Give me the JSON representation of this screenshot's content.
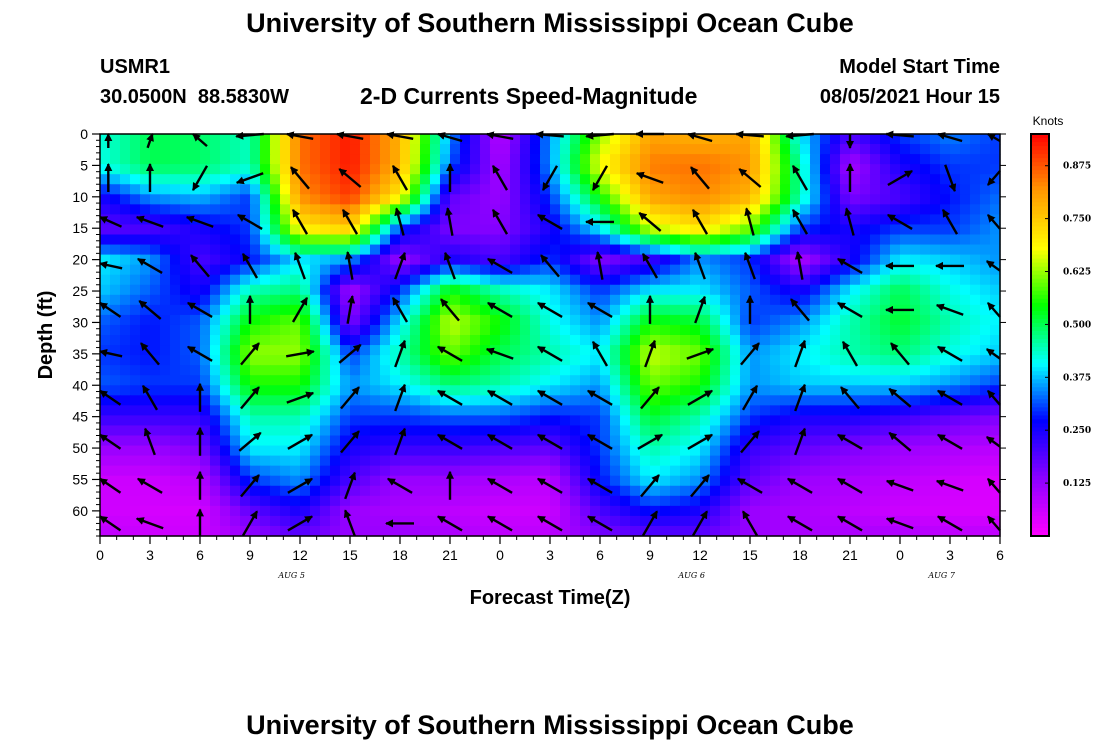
{
  "title": "University of Southern Mississippi Ocean Cube",
  "footer_title": "University of Southern Mississippi Ocean Cube",
  "station": {
    "id": "USMR1",
    "coords": "30.0500N  88.5830W"
  },
  "subtitle": "2-D Currents Speed-Magnitude",
  "model": {
    "label": "Model Start Time",
    "value": "08/05/2021 Hour 15"
  },
  "colors": {
    "colorscale": [
      "#ff00ff",
      "#8c00ff",
      "#0000ff",
      "#00ffff",
      "#00ff00",
      "#ffff00",
      "#ff9900",
      "#ff0000"
    ]
  },
  "chart_data": {
    "type": "heatmap",
    "xlabel": "Forecast Time(Z)",
    "ylabel": "Depth (ft)",
    "xlim": [
      0,
      54
    ],
    "ylim": [
      0,
      64
    ],
    "y_reversed": true,
    "x_tick_labels": [
      "0",
      "3",
      "6",
      "9",
      "12",
      "15",
      "18",
      "21",
      "0",
      "3",
      "6",
      "9",
      "12",
      "15",
      "18",
      "21",
      "0",
      "3",
      "6"
    ],
    "y_ticks": [
      0,
      5,
      10,
      15,
      20,
      25,
      30,
      35,
      40,
      45,
      50,
      55,
      60
    ],
    "day_labels": [
      {
        "label": "AUG 5",
        "x": 11.5
      },
      {
        "label": "AUG 6",
        "x": 35.5
      },
      {
        "label": "AUG 7",
        "x": 50.5
      }
    ],
    "colorbar": {
      "unit": "Knots",
      "range": [
        0,
        0.95
      ],
      "ticks": [
        "0.875",
        "0.750",
        "0.625",
        "0.500",
        "0.375",
        "0.250",
        "0.125"
      ],
      "tick_values": [
        0.875,
        0.75,
        0.625,
        0.5,
        0.375,
        0.25,
        0.125
      ]
    },
    "speed_grid_knots": {
      "x": [
        0,
        3,
        6,
        9,
        12,
        15,
        18,
        21,
        24,
        27,
        30,
        33,
        36,
        39,
        42,
        45,
        48,
        51,
        54
      ],
      "depth": [
        0,
        5,
        10,
        15,
        20,
        25,
        30,
        35,
        40,
        45,
        50,
        55,
        60,
        64
      ],
      "values": [
        [
          0.42,
          0.5,
          0.49,
          0.44,
          0.85,
          0.93,
          0.78,
          0.35,
          0.08,
          0.35,
          0.62,
          0.8,
          0.78,
          0.8,
          0.4,
          0.2,
          0.3,
          0.34,
          0.3
        ],
        [
          0.42,
          0.5,
          0.49,
          0.44,
          0.85,
          0.93,
          0.78,
          0.32,
          0.1,
          0.35,
          0.68,
          0.84,
          0.85,
          0.82,
          0.45,
          0.1,
          0.25,
          0.3,
          0.3
        ],
        [
          0.25,
          0.35,
          0.37,
          0.3,
          0.82,
          0.9,
          0.7,
          0.18,
          0.12,
          0.3,
          0.55,
          0.8,
          0.83,
          0.78,
          0.45,
          0.15,
          0.2,
          0.28,
          0.33
        ],
        [
          0.18,
          0.2,
          0.25,
          0.3,
          0.7,
          0.75,
          0.3,
          0.15,
          0.14,
          0.25,
          0.4,
          0.65,
          0.72,
          0.6,
          0.3,
          0.25,
          0.3,
          0.3,
          0.35
        ],
        [
          0.4,
          0.35,
          0.2,
          0.28,
          0.4,
          0.35,
          0.12,
          0.25,
          0.2,
          0.3,
          0.15,
          0.22,
          0.35,
          0.3,
          0.1,
          0.25,
          0.4,
          0.38,
          0.35
        ],
        [
          0.38,
          0.32,
          0.25,
          0.45,
          0.48,
          0.1,
          0.3,
          0.55,
          0.45,
          0.4,
          0.3,
          0.4,
          0.4,
          0.32,
          0.25,
          0.4,
          0.5,
          0.42,
          0.38
        ],
        [
          0.32,
          0.28,
          0.32,
          0.55,
          0.6,
          0.15,
          0.4,
          0.65,
          0.55,
          0.42,
          0.35,
          0.55,
          0.52,
          0.3,
          0.35,
          0.45,
          0.52,
          0.45,
          0.4
        ],
        [
          0.3,
          0.28,
          0.32,
          0.62,
          0.62,
          0.3,
          0.45,
          0.6,
          0.5,
          0.45,
          0.4,
          0.65,
          0.6,
          0.35,
          0.4,
          0.45,
          0.48,
          0.42,
          0.38
        ],
        [
          0.32,
          0.3,
          0.3,
          0.55,
          0.55,
          0.35,
          0.4,
          0.48,
          0.45,
          0.4,
          0.35,
          0.6,
          0.55,
          0.35,
          0.38,
          0.38,
          0.38,
          0.35,
          0.3
        ],
        [
          0.22,
          0.22,
          0.22,
          0.45,
          0.45,
          0.3,
          0.3,
          0.32,
          0.32,
          0.28,
          0.3,
          0.52,
          0.45,
          0.3,
          0.25,
          0.25,
          0.22,
          0.18,
          0.15
        ],
        [
          0.12,
          0.12,
          0.15,
          0.4,
          0.4,
          0.25,
          0.22,
          0.22,
          0.2,
          0.18,
          0.3,
          0.45,
          0.4,
          0.22,
          0.18,
          0.15,
          0.12,
          0.1,
          0.08
        ],
        [
          0.06,
          0.06,
          0.08,
          0.3,
          0.35,
          0.2,
          0.12,
          0.12,
          0.1,
          0.08,
          0.28,
          0.4,
          0.35,
          0.18,
          0.12,
          0.1,
          0.08,
          0.06,
          0.04
        ],
        [
          0.06,
          0.05,
          0.05,
          0.18,
          0.25,
          0.12,
          0.1,
          0.08,
          0.06,
          0.06,
          0.2,
          0.28,
          0.25,
          0.12,
          0.1,
          0.08,
          0.06,
          0.05,
          0.04
        ],
        [
          0.08,
          0.06,
          0.06,
          0.12,
          0.18,
          0.12,
          0.12,
          0.1,
          0.08,
          0.08,
          0.15,
          0.18,
          0.18,
          0.12,
          0.1,
          0.1,
          0.1,
          0.08,
          0.08
        ]
      ]
    },
    "vectors": {
      "times": [
        0.5,
        3,
        6,
        9,
        12,
        15,
        18,
        21,
        24,
        27,
        30,
        33,
        36,
        39,
        42,
        45,
        48,
        51,
        54
      ],
      "depths": [
        0,
        7,
        14,
        21,
        28,
        35,
        42,
        49,
        56,
        62
      ],
      "angles_deg": [
        [
          0,
          10,
          330,
          260,
          290,
          290,
          290,
          300,
          290,
          280,
          260,
          270,
          300,
          280,
          260,
          180,
          280,
          300,
          300
        ],
        [
          0,
          0,
          210,
          250,
          320,
          310,
          330,
          0,
          330,
          210,
          210,
          290,
          320,
          310,
          330,
          0,
          60,
          160,
          240
        ],
        [
          290,
          290,
          290,
          300,
          330,
          330,
          345,
          350,
          330,
          300,
          270,
          310,
          330,
          345,
          330,
          345,
          300,
          330,
          300
        ],
        [
          280,
          300,
          320,
          330,
          340,
          350,
          20,
          340,
          300,
          320,
          350,
          330,
          340,
          340,
          350,
          300,
          270,
          270,
          290
        ],
        [
          300,
          310,
          300,
          0,
          30,
          10,
          330,
          320,
          300,
          300,
          300,
          0,
          20,
          0,
          320,
          300,
          270,
          290,
          300
        ],
        [
          280,
          320,
          300,
          40,
          80,
          50,
          20,
          300,
          290,
          300,
          330,
          20,
          70,
          40,
          20,
          330,
          320,
          300,
          290
        ],
        [
          300,
          330,
          0,
          40,
          70,
          40,
          20,
          300,
          300,
          300,
          300,
          40,
          60,
          30,
          20,
          320,
          310,
          300,
          300
        ],
        [
          300,
          340,
          0,
          50,
          60,
          40,
          20,
          300,
          300,
          300,
          300,
          60,
          60,
          40,
          20,
          300,
          310,
          300,
          290
        ],
        [
          300,
          300,
          0,
          40,
          60,
          20,
          300,
          0,
          300,
          300,
          300,
          40,
          40,
          300,
          300,
          300,
          290,
          290,
          300
        ],
        [
          300,
          290,
          0,
          30,
          60,
          340,
          270,
          300,
          300,
          300,
          300,
          30,
          30,
          330,
          300,
          300,
          290,
          300,
          300
        ]
      ]
    }
  }
}
